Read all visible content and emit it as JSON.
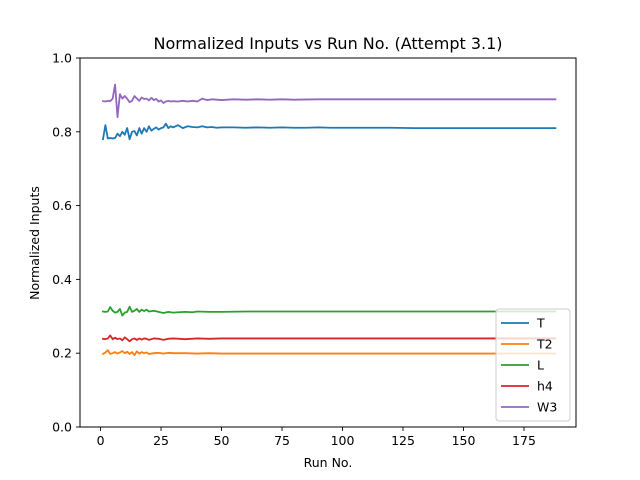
{
  "chart_data": {
    "type": "line",
    "title": "Normalized Inputs vs Run No. (Attempt 3.1)",
    "xlabel": "Run No.",
    "ylabel": "Normalized Inputs",
    "xlim": [
      -8.5,
      196.5
    ],
    "ylim": [
      0.0,
      1.0
    ],
    "xticks": [
      0,
      25,
      50,
      75,
      100,
      125,
      150,
      175
    ],
    "xtick_labels": [
      "0",
      "25",
      "50",
      "75",
      "100",
      "125",
      "150",
      "175"
    ],
    "yticks": [
      0.0,
      0.2,
      0.4,
      0.6,
      0.8,
      1.0
    ],
    "ytick_labels": [
      "0.0",
      "0.2",
      "0.4",
      "0.6",
      "0.8",
      "1.0"
    ],
    "grid": false,
    "legend_position": "lower-right",
    "series": [
      {
        "name": "T",
        "color": "#1f77b4",
        "points": [
          [
            1,
            0.78
          ],
          [
            2,
            0.818
          ],
          [
            3,
            0.782
          ],
          [
            4,
            0.783
          ],
          [
            5,
            0.782
          ],
          [
            6,
            0.783
          ],
          [
            7,
            0.795
          ],
          [
            8,
            0.788
          ],
          [
            9,
            0.8
          ],
          [
            10,
            0.792
          ],
          [
            11,
            0.81
          ],
          [
            12,
            0.78
          ],
          [
            13,
            0.8
          ],
          [
            14,
            0.802
          ],
          [
            15,
            0.79
          ],
          [
            16,
            0.81
          ],
          [
            17,
            0.795
          ],
          [
            18,
            0.81
          ],
          [
            19,
            0.8
          ],
          [
            20,
            0.815
          ],
          [
            21,
            0.803
          ],
          [
            22,
            0.808
          ],
          [
            23,
            0.812
          ],
          [
            24,
            0.806
          ],
          [
            25,
            0.81
          ],
          [
            26,
            0.812
          ],
          [
            27,
            0.822
          ],
          [
            28,
            0.81
          ],
          [
            29,
            0.815
          ],
          [
            30,
            0.812
          ],
          [
            32,
            0.818
          ],
          [
            34,
            0.81
          ],
          [
            36,
            0.815
          ],
          [
            38,
            0.813
          ],
          [
            40,
            0.812
          ],
          [
            42,
            0.815
          ],
          [
            44,
            0.812
          ],
          [
            46,
            0.813
          ],
          [
            48,
            0.811
          ],
          [
            50,
            0.812
          ],
          [
            55,
            0.812
          ],
          [
            60,
            0.811
          ],
          [
            65,
            0.812
          ],
          [
            70,
            0.811
          ],
          [
            75,
            0.812
          ],
          [
            80,
            0.811
          ],
          [
            85,
            0.811
          ],
          [
            90,
            0.812
          ],
          [
            95,
            0.811
          ],
          [
            100,
            0.811
          ],
          [
            110,
            0.811
          ],
          [
            120,
            0.811
          ],
          [
            130,
            0.81
          ],
          [
            140,
            0.81
          ],
          [
            150,
            0.81
          ],
          [
            160,
            0.81
          ],
          [
            170,
            0.81
          ],
          [
            180,
            0.81
          ],
          [
            188,
            0.81
          ]
        ]
      },
      {
        "name": "T2",
        "color": "#ff7f0e",
        "points": [
          [
            1,
            0.198
          ],
          [
            2,
            0.202
          ],
          [
            3,
            0.208
          ],
          [
            4,
            0.198
          ],
          [
            5,
            0.2
          ],
          [
            6,
            0.203
          ],
          [
            7,
            0.199
          ],
          [
            8,
            0.202
          ],
          [
            9,
            0.206
          ],
          [
            10,
            0.2
          ],
          [
            11,
            0.204
          ],
          [
            12,
            0.198
          ],
          [
            13,
            0.203
          ],
          [
            14,
            0.195
          ],
          [
            15,
            0.205
          ],
          [
            16,
            0.199
          ],
          [
            17,
            0.203
          ],
          [
            18,
            0.2
          ],
          [
            19,
            0.202
          ],
          [
            20,
            0.198
          ],
          [
            22,
            0.2
          ],
          [
            24,
            0.201
          ],
          [
            26,
            0.199
          ],
          [
            28,
            0.201
          ],
          [
            30,
            0.2
          ],
          [
            35,
            0.2
          ],
          [
            40,
            0.199
          ],
          [
            45,
            0.2
          ],
          [
            50,
            0.199
          ],
          [
            60,
            0.199
          ],
          [
            70,
            0.199
          ],
          [
            80,
            0.199
          ],
          [
            100,
            0.199
          ],
          [
            125,
            0.199
          ],
          [
            150,
            0.199
          ],
          [
            175,
            0.199
          ],
          [
            188,
            0.199
          ]
        ]
      },
      {
        "name": "L",
        "color": "#2ca02c",
        "points": [
          [
            1,
            0.313
          ],
          [
            2,
            0.312
          ],
          [
            3,
            0.313
          ],
          [
            4,
            0.325
          ],
          [
            5,
            0.315
          ],
          [
            6,
            0.31
          ],
          [
            7,
            0.312
          ],
          [
            8,
            0.32
          ],
          [
            9,
            0.302
          ],
          [
            10,
            0.31
          ],
          [
            11,
            0.312
          ],
          [
            12,
            0.326
          ],
          [
            13,
            0.312
          ],
          [
            14,
            0.315
          ],
          [
            15,
            0.32
          ],
          [
            16,
            0.312
          ],
          [
            17,
            0.318
          ],
          [
            18,
            0.314
          ],
          [
            19,
            0.318
          ],
          [
            20,
            0.313
          ],
          [
            22,
            0.315
          ],
          [
            24,
            0.312
          ],
          [
            26,
            0.309
          ],
          [
            28,
            0.312
          ],
          [
            30,
            0.31
          ],
          [
            32,
            0.311
          ],
          [
            35,
            0.312
          ],
          [
            38,
            0.311
          ],
          [
            40,
            0.313
          ],
          [
            45,
            0.312
          ],
          [
            50,
            0.312
          ],
          [
            60,
            0.313
          ],
          [
            70,
            0.313
          ],
          [
            80,
            0.313
          ],
          [
            100,
            0.313
          ],
          [
            125,
            0.313
          ],
          [
            150,
            0.313
          ],
          [
            175,
            0.313
          ],
          [
            188,
            0.313
          ]
        ]
      },
      {
        "name": "h4",
        "color": "#d62728",
        "points": [
          [
            1,
            0.239
          ],
          [
            2,
            0.238
          ],
          [
            3,
            0.24
          ],
          [
            4,
            0.248
          ],
          [
            5,
            0.238
          ],
          [
            6,
            0.242
          ],
          [
            7,
            0.238
          ],
          [
            8,
            0.24
          ],
          [
            9,
            0.235
          ],
          [
            10,
            0.243
          ],
          [
            11,
            0.238
          ],
          [
            12,
            0.232
          ],
          [
            13,
            0.238
          ],
          [
            14,
            0.24
          ],
          [
            15,
            0.236
          ],
          [
            16,
            0.24
          ],
          [
            17,
            0.237
          ],
          [
            18,
            0.24
          ],
          [
            19,
            0.239
          ],
          [
            20,
            0.236
          ],
          [
            22,
            0.24
          ],
          [
            24,
            0.239
          ],
          [
            26,
            0.236
          ],
          [
            28,
            0.239
          ],
          [
            30,
            0.24
          ],
          [
            35,
            0.238
          ],
          [
            40,
            0.24
          ],
          [
            45,
            0.239
          ],
          [
            50,
            0.24
          ],
          [
            60,
            0.24
          ],
          [
            70,
            0.24
          ],
          [
            80,
            0.24
          ],
          [
            100,
            0.24
          ],
          [
            125,
            0.24
          ],
          [
            150,
            0.24
          ],
          [
            175,
            0.24
          ],
          [
            188,
            0.24
          ]
        ]
      },
      {
        "name": "W3",
        "color": "#9467bd",
        "points": [
          [
            1,
            0.883
          ],
          [
            2,
            0.882
          ],
          [
            3,
            0.884
          ],
          [
            4,
            0.883
          ],
          [
            5,
            0.89
          ],
          [
            6,
            0.928
          ],
          [
            7,
            0.84
          ],
          [
            8,
            0.902
          ],
          [
            9,
            0.89
          ],
          [
            10,
            0.897
          ],
          [
            11,
            0.89
          ],
          [
            12,
            0.88
          ],
          [
            13,
            0.884
          ],
          [
            14,
            0.897
          ],
          [
            15,
            0.89
          ],
          [
            16,
            0.884
          ],
          [
            17,
            0.893
          ],
          [
            18,
            0.889
          ],
          [
            19,
            0.89
          ],
          [
            20,
            0.885
          ],
          [
            21,
            0.892
          ],
          [
            22,
            0.886
          ],
          [
            23,
            0.889
          ],
          [
            24,
            0.882
          ],
          [
            25,
            0.885
          ],
          [
            26,
            0.878
          ],
          [
            27,
            0.882
          ],
          [
            28,
            0.884
          ],
          [
            29,
            0.882
          ],
          [
            30,
            0.883
          ],
          [
            32,
            0.882
          ],
          [
            34,
            0.884
          ],
          [
            36,
            0.882
          ],
          [
            38,
            0.884
          ],
          [
            40,
            0.882
          ],
          [
            42,
            0.89
          ],
          [
            44,
            0.886
          ],
          [
            46,
            0.888
          ],
          [
            48,
            0.887
          ],
          [
            50,
            0.886
          ],
          [
            55,
            0.888
          ],
          [
            60,
            0.887
          ],
          [
            65,
            0.888
          ],
          [
            70,
            0.887
          ],
          [
            75,
            0.888
          ],
          [
            80,
            0.887
          ],
          [
            90,
            0.888
          ],
          [
            100,
            0.888
          ],
          [
            125,
            0.888
          ],
          [
            150,
            0.888
          ],
          [
            175,
            0.888
          ],
          [
            188,
            0.888
          ]
        ]
      }
    ]
  }
}
